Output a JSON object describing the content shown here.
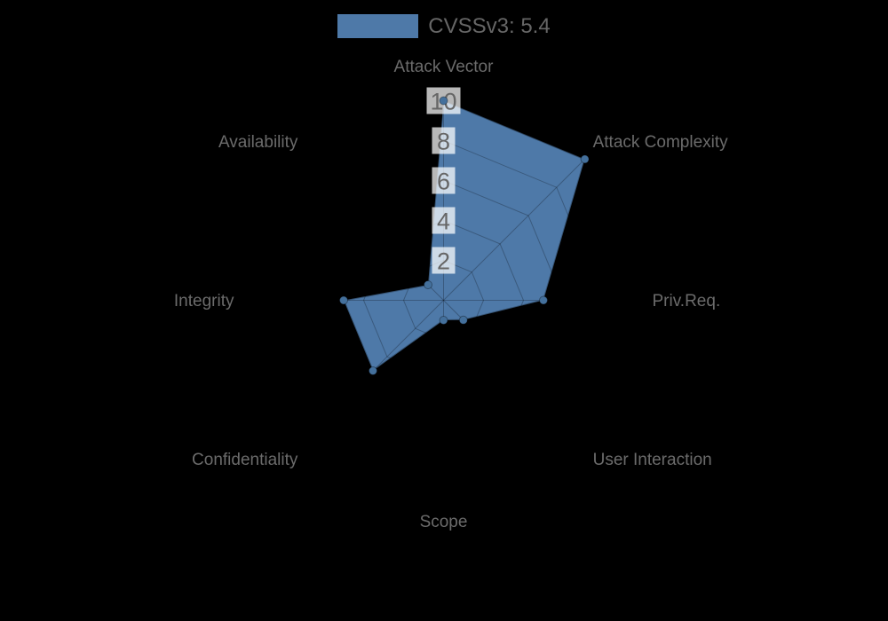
{
  "legend": {
    "items": [
      {
        "label": "CVSSv3: 5.4",
        "color": "#4e79a8"
      }
    ]
  },
  "chart_data": {
    "type": "radar",
    "title": "",
    "categories": [
      "Attack Vector",
      "Attack Complexity",
      "Priv.Req.",
      "User Interaction",
      "Scope",
      "Confidentiality",
      "Integrity",
      "Availability"
    ],
    "series": [
      {
        "name": "CVSSv3: 5.4",
        "values": [
          10,
          10,
          5,
          1.4,
          1.0,
          5,
          5,
          1.1
        ],
        "color": "#4e79a8"
      }
    ],
    "rmin": 0,
    "rmax": 10,
    "ticks": [
      2,
      4,
      6,
      8,
      10
    ],
    "grid": "polygonal-web",
    "legend_position": "top"
  },
  "colors": {
    "background": "#000000",
    "grid_line": "rgba(0,0,0,0.25)",
    "polygon_fill": "#4e79a8",
    "polygon_stroke": "rgba(0,0,0,0.3)",
    "point_fill": "#44709c",
    "point_stroke": "rgba(0,0,0,0.35)",
    "tick_backdrop": "rgba(255,255,255,0.72)",
    "tick_text": "#666666",
    "axis_label_text": "#6b6b6b"
  }
}
